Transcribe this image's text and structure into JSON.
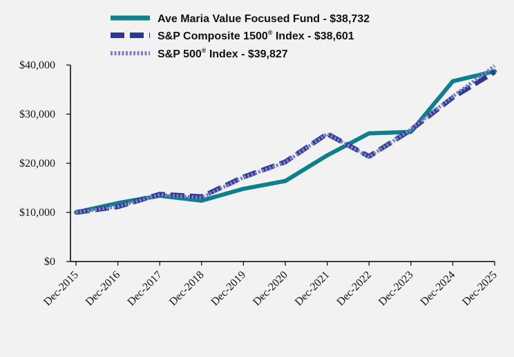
{
  "chart_data": {
    "type": "line",
    "title": "",
    "xlabel": "",
    "ylabel": "",
    "categories": [
      "Dec-2015",
      "Dec-2016",
      "Dec-2017",
      "Dec-2018",
      "Dec-2019",
      "Dec-2020",
      "Dec-2021",
      "Dec-2022",
      "Dec-2023",
      "Dec-2024",
      "Dec-2025"
    ],
    "y_ticks": [
      "$0",
      "$10,000",
      "$20,000",
      "$30,000",
      "$40,000"
    ],
    "ylim": [
      0,
      40000
    ],
    "grid": false,
    "legend_position": "top",
    "series": [
      {
        "name": "Ave Maria Value Focused Fund - $38,732",
        "name_parts": {
          "main": "Ave Maria Value Focused Fund - $38,732",
          "sup": "",
          "tail": ""
        },
        "color": "#0e7f8c",
        "style": "solid",
        "values": [
          10000,
          11900,
          13400,
          12400,
          14800,
          16400,
          21600,
          26100,
          26400,
          36700,
          38732
        ]
      },
      {
        "name": "S&P Composite 1500® Index - $38,601",
        "name_parts": {
          "main": "S&P Composite 1500",
          "sup": "®",
          "tail": " Index - $38,601"
        },
        "color": "#2b3990",
        "style": "dashed",
        "values": [
          10000,
          11150,
          13700,
          13200,
          17200,
          20300,
          26000,
          21400,
          26800,
          33400,
          38601
        ]
      },
      {
        "name": "S&P 500® Index - $39,827",
        "name_parts": {
          "main": "S&P 500",
          "sup": "®",
          "tail": " Index - $39,827"
        },
        "color": "#7a7fc8",
        "style": "dotted",
        "values": [
          10000,
          11200,
          13600,
          13000,
          17100,
          20200,
          26000,
          21300,
          26900,
          33600,
          39827
        ]
      }
    ]
  }
}
